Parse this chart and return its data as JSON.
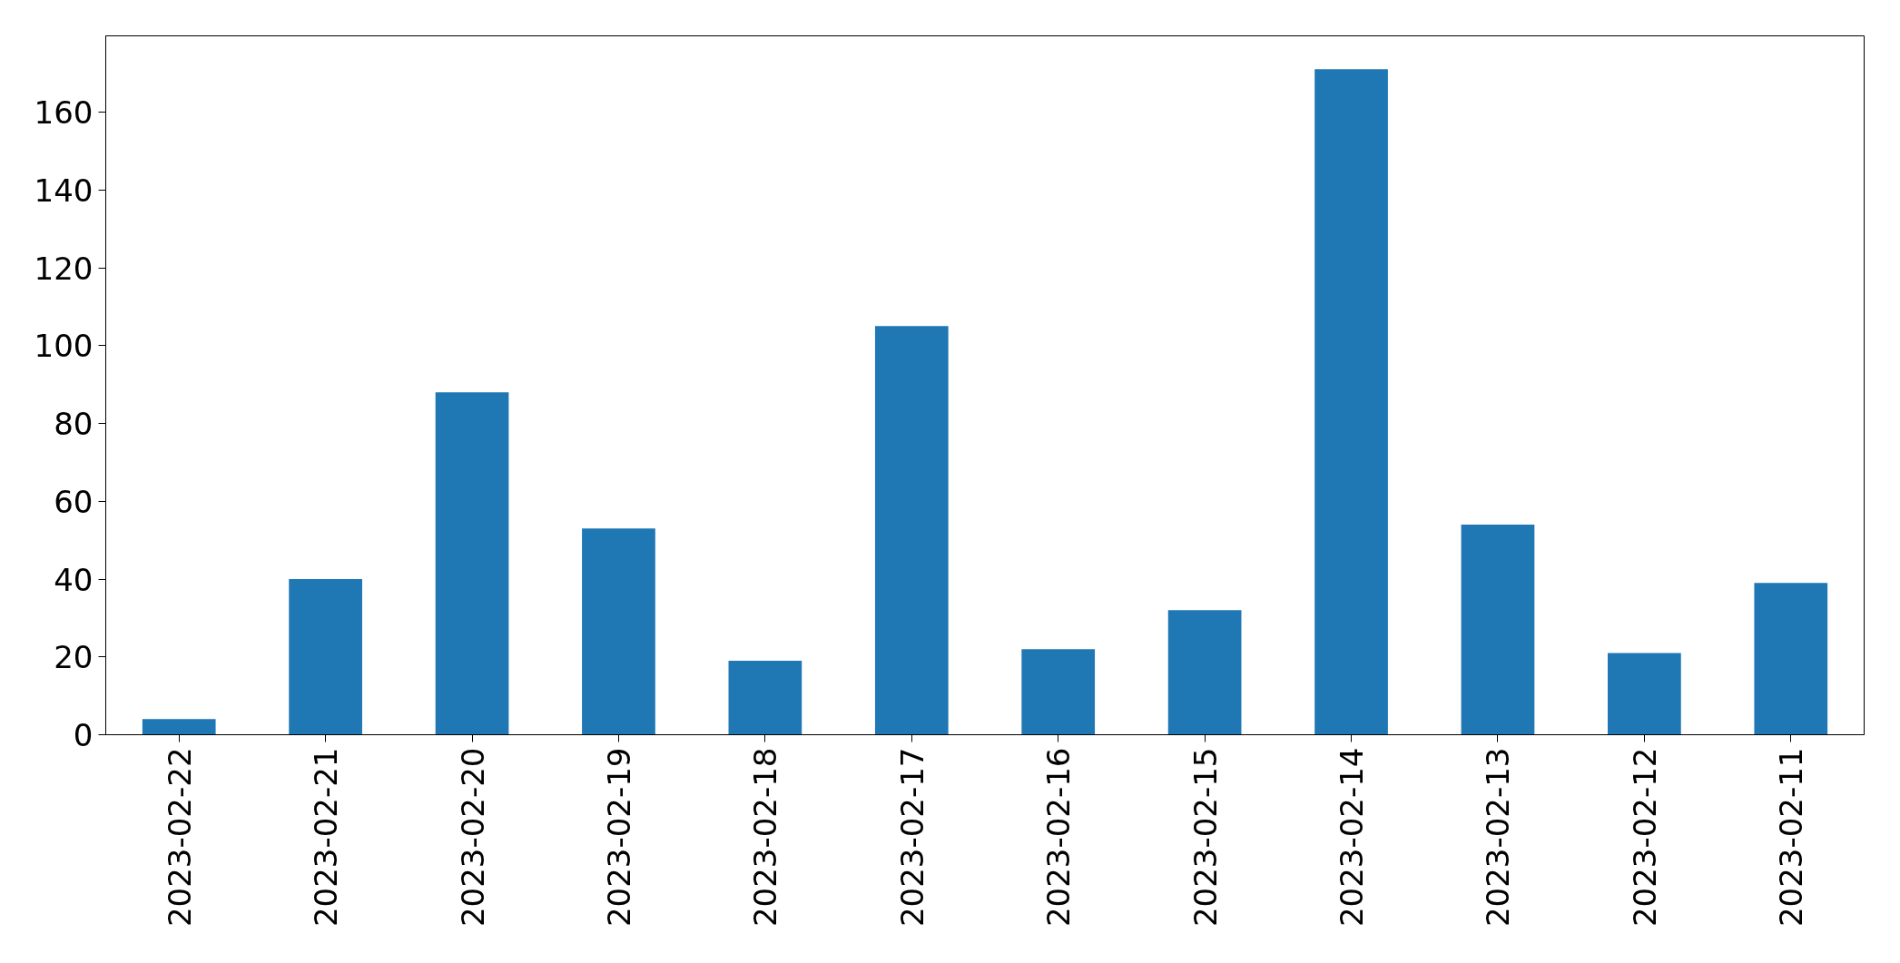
{
  "chart_data": {
    "type": "bar",
    "categories": [
      "2023-02-22",
      "2023-02-21",
      "2023-02-20",
      "2023-02-19",
      "2023-02-18",
      "2023-02-17",
      "2023-02-16",
      "2023-02-15",
      "2023-02-14",
      "2023-02-13",
      "2023-02-12",
      "2023-02-11"
    ],
    "values": [
      4,
      40,
      88,
      53,
      19,
      105,
      22,
      32,
      171,
      54,
      21,
      39
    ],
    "color": "#1f77b4",
    "ylim": [
      0,
      179.6
    ],
    "yticks": [
      0,
      20,
      40,
      60,
      80,
      100,
      120,
      140,
      160
    ]
  }
}
